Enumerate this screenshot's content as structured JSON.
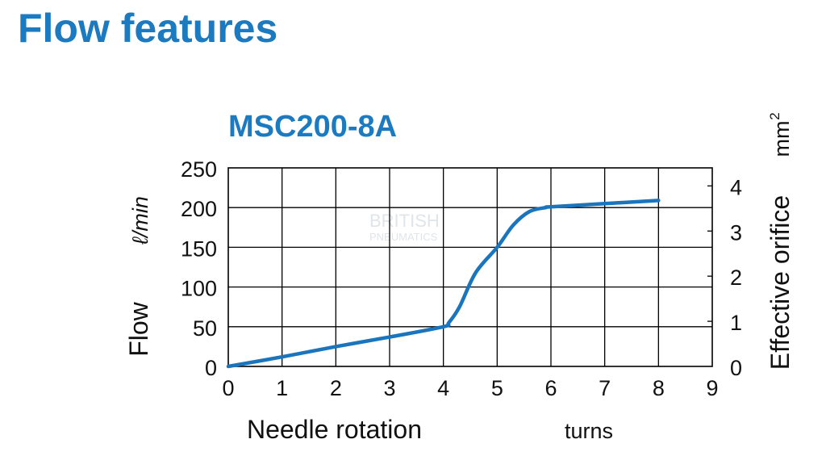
{
  "page": {
    "title": "Flow features"
  },
  "chart_data": {
    "type": "line",
    "title": "MSC200-8A",
    "xlabel": "Needle rotation",
    "xunit": "turns",
    "ylabel": "Flow",
    "yunit": "ℓ/min",
    "y2label": "Effective orifice",
    "y2unit": "mm",
    "y2unit_sup": "2",
    "xlim": [
      0,
      9
    ],
    "ylim": [
      0,
      250
    ],
    "y2lim": [
      0,
      4.4
    ],
    "x_ticks": [
      0,
      1,
      2,
      3,
      4,
      5,
      6,
      7,
      8,
      9
    ],
    "y_ticks": [
      0,
      50,
      100,
      150,
      200,
      250
    ],
    "y2_ticks": [
      0,
      1,
      2,
      3,
      4
    ],
    "grid": true,
    "series": [
      {
        "color": "#1a75bc",
        "x": [
          0,
          1,
          2,
          3,
          4,
          4.1,
          4.3,
          4.6,
          5,
          5.3,
          5.6,
          5.9,
          6,
          7,
          8
        ],
        "y": [
          0,
          12,
          25,
          37,
          50,
          55,
          75,
          118,
          150,
          178,
          195,
          200,
          201,
          205,
          209
        ]
      }
    ],
    "watermark": {
      "line1": "BRITISH",
      "line2": "PNEUMATICS"
    }
  }
}
